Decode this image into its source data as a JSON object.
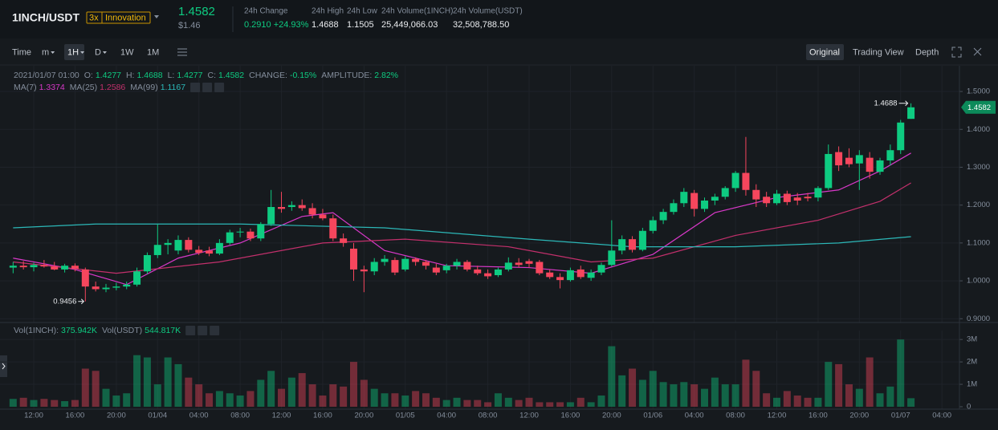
{
  "header": {
    "pair": "1INCH/USDT",
    "leverage": "3x",
    "tag": "Innovation",
    "usd_price": "$1.46",
    "stats": [
      {
        "label": "24h Change",
        "value": "0.2910 +24.93%"
      },
      {
        "label": "24h High",
        "value": "1.4688"
      },
      {
        "label": "24h Low",
        "value": "1.1505"
      },
      {
        "label": "24h Volume(1INCH)",
        "value": "25,449,066.03"
      },
      {
        "label": "24h Volume(USDT)",
        "value": "32,508,788.50"
      }
    ]
  },
  "toolbar": {
    "left": [
      "Time",
      "m",
      "1H",
      "D",
      "1W",
      "1M"
    ],
    "right": [
      "Original",
      "Trading View",
      "Depth"
    ]
  },
  "chart_data": {
    "type": "candlestick",
    "info": {
      "date": "2021/01/07 01:00",
      "labels": [
        "O:",
        "H:",
        "L:",
        "C:"
      ],
      "change_label": "CHANGE:",
      "change": "-0.15%",
      "amplitude_label": "AMPLITUDE:",
      "amplitude": "2.82%"
    },
    "up_color": "#0ecb81",
    "down_color": "#f6465d",
    "ohlc": [
      [
        1.035,
        1.05,
        1.02,
        1.04
      ],
      [
        1.04,
        1.052,
        1.03,
        1.036
      ],
      [
        1.036,
        1.048,
        1.025,
        1.042
      ],
      [
        1.042,
        1.055,
        1.035,
        1.038
      ],
      [
        1.038,
        1.05,
        1.028,
        1.03
      ],
      [
        1.03,
        1.045,
        1.022,
        1.04
      ],
      [
        1.04,
        1.046,
        1.025,
        1.032
      ],
      [
        1.03,
        1.035,
        0.9456,
        0.985
      ],
      [
        0.985,
        0.998,
        0.972,
        0.978
      ],
      [
        0.978,
        0.992,
        0.97,
        0.982
      ],
      [
        0.982,
        0.995,
        0.975,
        0.985
      ],
      [
        0.985,
        0.998,
        0.978,
        0.99
      ],
      [
        0.99,
        1.035,
        0.985,
        1.025
      ],
      [
        1.025,
        1.075,
        1.018,
        1.068
      ],
      [
        1.068,
        1.15,
        1.06,
        1.095
      ],
      [
        1.095,
        1.11,
        1.07,
        1.1
      ],
      [
        1.08,
        1.12,
        1.07,
        1.108
      ],
      [
        1.108,
        1.115,
        1.075,
        1.082
      ],
      [
        1.082,
        1.092,
        1.068,
        1.074
      ],
      [
        1.08,
        1.09,
        1.065,
        1.072
      ],
      [
        1.072,
        1.11,
        1.068,
        1.1
      ],
      [
        1.1,
        1.135,
        1.095,
        1.128
      ],
      [
        1.128,
        1.14,
        1.115,
        1.13
      ],
      [
        1.13,
        1.138,
        1.105,
        1.112
      ],
      [
        1.112,
        1.155,
        1.105,
        1.15
      ],
      [
        1.15,
        1.24,
        1.145,
        1.195
      ],
      [
        1.195,
        1.235,
        1.18,
        1.19
      ],
      [
        1.195,
        1.21,
        1.185,
        1.2
      ],
      [
        1.2,
        1.215,
        1.185,
        1.192
      ],
      [
        1.192,
        1.205,
        1.165,
        1.175
      ],
      [
        1.175,
        1.19,
        1.16,
        1.165
      ],
      [
        1.165,
        1.175,
        1.105,
        1.112
      ],
      [
        1.112,
        1.125,
        1.09,
        1.1
      ],
      [
        1.085,
        1.1,
        1.0,
        1.03
      ],
      [
        1.03,
        1.04,
        0.97,
        1.025
      ],
      [
        1.025,
        1.06,
        1.015,
        1.05
      ],
      [
        1.05,
        1.068,
        1.04,
        1.058
      ],
      [
        1.055,
        1.062,
        1.015,
        1.022
      ],
      [
        1.03,
        1.065,
        1.025,
        1.058
      ],
      [
        1.058,
        1.062,
        1.04,
        1.05
      ],
      [
        1.05,
        1.055,
        1.03,
        1.04
      ],
      [
        1.035,
        1.045,
        1.015,
        1.022
      ],
      [
        1.028,
        1.045,
        1.02,
        1.04
      ],
      [
        1.04,
        1.058,
        1.03,
        1.05
      ],
      [
        1.05,
        1.055,
        1.025,
        1.03
      ],
      [
        1.03,
        1.04,
        1.015,
        1.02
      ],
      [
        1.02,
        1.03,
        1.005,
        1.012
      ],
      [
        1.015,
        1.035,
        1.01,
        1.03
      ],
      [
        1.03,
        1.062,
        1.025,
        1.048
      ],
      [
        1.048,
        1.06,
        1.035,
        1.042
      ],
      [
        1.052,
        1.058,
        1.035,
        1.045
      ],
      [
        1.05,
        1.055,
        1.015,
        1.02
      ],
      [
        1.022,
        1.03,
        1.005,
        1.01
      ],
      [
        1.01,
        1.02,
        0.98,
        1.002
      ],
      [
        1.002,
        1.035,
        0.998,
        1.028
      ],
      [
        1.03,
        1.04,
        1.005,
        1.01
      ],
      [
        1.008,
        1.03,
        1.0,
        1.022
      ],
      [
        1.022,
        1.048,
        1.015,
        1.042
      ],
      [
        1.042,
        1.16,
        1.038,
        1.08
      ],
      [
        1.08,
        1.12,
        1.07,
        1.11
      ],
      [
        1.11,
        1.118,
        1.075,
        1.082
      ],
      [
        1.082,
        1.14,
        1.078,
        1.132
      ],
      [
        1.132,
        1.17,
        1.125,
        1.16
      ],
      [
        1.16,
        1.19,
        1.15,
        1.182
      ],
      [
        1.182,
        1.215,
        1.175,
        1.205
      ],
      [
        1.205,
        1.245,
        1.195,
        1.235
      ],
      [
        1.232,
        1.24,
        1.17,
        1.19
      ],
      [
        1.19,
        1.22,
        1.182,
        1.212
      ],
      [
        1.212,
        1.23,
        1.2,
        1.222
      ],
      [
        1.222,
        1.25,
        1.215,
        1.245
      ],
      [
        1.245,
        1.29,
        1.235,
        1.285
      ],
      [
        1.285,
        1.38,
        1.225,
        1.24
      ],
      [
        1.24,
        1.255,
        1.195,
        1.215
      ],
      [
        1.222,
        1.235,
        1.195,
        1.205
      ],
      [
        1.205,
        1.24,
        1.2,
        1.23
      ],
      [
        1.23,
        1.238,
        1.2,
        1.208
      ],
      [
        1.22,
        1.232,
        1.2,
        1.212
      ],
      [
        1.222,
        1.232,
        1.21,
        1.218
      ],
      [
        1.22,
        1.25,
        1.21,
        1.245
      ],
      [
        1.245,
        1.36,
        1.24,
        1.335
      ],
      [
        1.34,
        1.355,
        1.29,
        1.305
      ],
      [
        1.325,
        1.35,
        1.3,
        1.308
      ],
      [
        1.31,
        1.345,
        1.24,
        1.332
      ],
      [
        1.325,
        1.34,
        1.27,
        1.288
      ],
      [
        1.288,
        1.325,
        1.28,
        1.318
      ],
      [
        1.318,
        1.36,
        1.305,
        1.345
      ],
      [
        1.345,
        1.425,
        1.335,
        1.418
      ],
      [
        1.4277,
        1.4688,
        1.4277,
        1.4582
      ]
    ],
    "ma": [
      {
        "name": "MA(7)",
        "color": "#d838c8",
        "x": [
          0,
          6,
          11,
          16,
          22,
          28,
          31,
          36,
          42,
          50,
          56,
          62,
          68,
          74,
          80,
          84,
          87
        ],
        "values": [
          1.06,
          1.03,
          0.99,
          1.06,
          1.1,
          1.17,
          1.18,
          1.08,
          1.04,
          1.035,
          1.02,
          1.07,
          1.18,
          1.22,
          1.24,
          1.29,
          1.3374
        ]
      },
      {
        "name": "MA(25)",
        "color": "#c3306c",
        "x": [
          0,
          10,
          20,
          30,
          38,
          48,
          56,
          62,
          70,
          78,
          84,
          87
        ],
        "values": [
          1.05,
          1.02,
          1.05,
          1.1,
          1.11,
          1.09,
          1.05,
          1.06,
          1.12,
          1.16,
          1.21,
          1.2586
        ]
      },
      {
        "name": "MA(99)",
        "color": "#2cb8b8",
        "x": [
          0,
          8,
          22,
          36,
          50,
          60,
          70,
          80,
          87
        ],
        "values": [
          1.14,
          1.15,
          1.15,
          1.14,
          1.11,
          1.09,
          1.09,
          1.1,
          1.1167
        ]
      }
    ],
    "xlim": [
      -1.27,
      91.7
    ],
    "xticks": [
      {
        "value": 2,
        "label": "12:00"
      },
      {
        "value": 6,
        "label": "16:00"
      },
      {
        "value": 10,
        "label": "20:00"
      },
      {
        "value": 14,
        "label": "01/04"
      },
      {
        "value": 18,
        "label": "04:00"
      },
      {
        "value": 22,
        "label": "08:00"
      },
      {
        "value": 26,
        "label": "12:00"
      },
      {
        "value": 30,
        "label": "16:00"
      },
      {
        "value": 34,
        "label": "20:00"
      },
      {
        "value": 38,
        "label": "01/05"
      },
      {
        "value": 42,
        "label": "04:00"
      },
      {
        "value": 46,
        "label": "08:00"
      },
      {
        "value": 50,
        "label": "12:00"
      },
      {
        "value": 54,
        "label": "16:00"
      },
      {
        "value": 58,
        "label": "20:00"
      },
      {
        "value": 62,
        "label": "01/06"
      },
      {
        "value": 66,
        "label": "04:00"
      },
      {
        "value": 70,
        "label": "08:00"
      },
      {
        "value": 74,
        "label": "12:00"
      },
      {
        "value": 78,
        "label": "16:00"
      },
      {
        "value": 82,
        "label": "20:00"
      },
      {
        "value": 86,
        "label": "01/07"
      },
      {
        "value": 90,
        "label": "04:00"
      }
    ],
    "ylim": [
      0.89,
      1.57
    ],
    "yticks": [
      {
        "value": 0.9,
        "label": "0.9000"
      },
      {
        "value": 1.0,
        "label": "1.0000"
      },
      {
        "value": 1.1,
        "label": "1.1000"
      },
      {
        "value": 1.2,
        "label": "1.2000"
      },
      {
        "value": 1.3,
        "label": "1.3000"
      },
      {
        "value": 1.4,
        "label": "1.4000"
      },
      {
        "value": 1.5,
        "label": "1.5000"
      }
    ],
    "grid": true,
    "volume_info": [
      {
        "label": "Vol(1INCH):",
        "value": "375.942K"
      },
      {
        "label": "Vol(USDT)",
        "value": "544.817K"
      }
    ],
    "volume": {
      "values": [
        0.35,
        0.4,
        0.3,
        0.35,
        0.3,
        0.25,
        0.3,
        1.7,
        1.6,
        0.8,
        0.5,
        0.6,
        2.3,
        2.2,
        1.0,
        2.2,
        1.9,
        1.3,
        1.0,
        0.6,
        0.7,
        0.6,
        0.5,
        0.7,
        1.2,
        1.6,
        0.8,
        1.3,
        1.5,
        1.0,
        0.5,
        1.0,
        0.9,
        2.0,
        1.2,
        0.8,
        0.6,
        0.6,
        0.5,
        0.7,
        0.6,
        0.4,
        0.3,
        0.4,
        0.3,
        0.3,
        0.2,
        0.6,
        0.4,
        0.3,
        0.4,
        0.2,
        0.2,
        0.2,
        0.2,
        0.4,
        0.2,
        0.5,
        2.7,
        1.4,
        1.7,
        1.2,
        1.6,
        1.1,
        1.0,
        1.1,
        1.0,
        0.8,
        1.3,
        1.0,
        1.0,
        2.1,
        1.6,
        0.6,
        0.4,
        0.7,
        0.5,
        0.4,
        0.4,
        2.0,
        1.9,
        1.0,
        0.8,
        2.2,
        0.6,
        0.9,
        3.0,
        0.38
      ],
      "ylim": [
        0,
        3.4
      ],
      "yticks": [
        0,
        {
          "value": 1,
          "label": "1M"
        },
        {
          "value": 2,
          "label": "2M"
        },
        {
          "value": 3,
          "label": "3M"
        }
      ]
    }
  }
}
